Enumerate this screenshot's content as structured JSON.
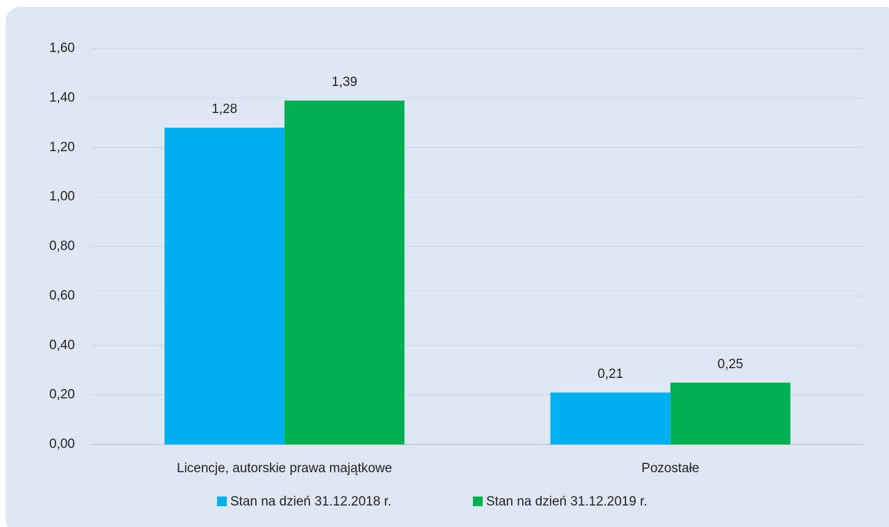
{
  "chart_data": {
    "type": "bar",
    "categories": [
      "Licencje, autorskie prawa majątkowe",
      "Pozostałe"
    ],
    "series": [
      {
        "name": "Stan na dzień 31.12.2018 r.",
        "color": "#00b0f0",
        "values": [
          1.28,
          0.21
        ],
        "value_labels": [
          "1,28",
          "0,21"
        ]
      },
      {
        "name": "Stan na dzień 31.12.2019 r.",
        "color": "#00b050",
        "values": [
          1.39,
          0.25
        ],
        "value_labels": [
          "1,39",
          "0,25"
        ]
      }
    ],
    "ylim": [
      0,
      1.6
    ],
    "yticks": [
      {
        "value": 0,
        "label": "0,00"
      },
      {
        "value": 0.2,
        "label": "0,20"
      },
      {
        "value": 0.4,
        "label": "0,40"
      },
      {
        "value": 0.6,
        "label": "0,60"
      },
      {
        "value": 0.8,
        "label": "0,80"
      },
      {
        "value": 1.0,
        "label": "1,00"
      },
      {
        "value": 1.2,
        "label": "1,20"
      },
      {
        "value": 1.4,
        "label": "1,40"
      },
      {
        "value": 1.6,
        "label": "1,60"
      }
    ],
    "grid": true,
    "legend": "bottom"
  }
}
